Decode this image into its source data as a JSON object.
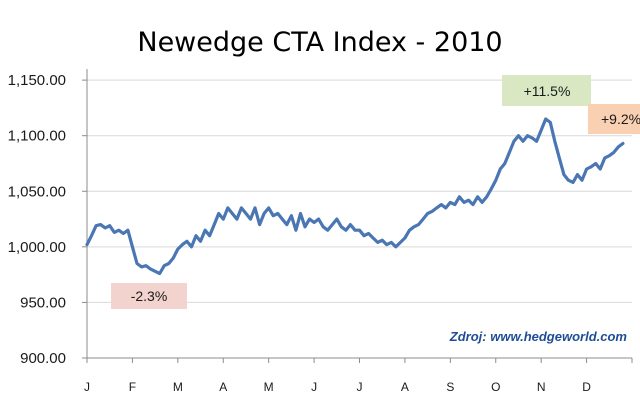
{
  "chart_data": {
    "type": "line",
    "title": "Newedge CTA Index - 2010",
    "source_note": "Zdroj: www.hedgeworld.com",
    "yticks": [
      "1,150.00",
      "1,100.00",
      "1,050.00",
      "1,000.00",
      "950.00",
      "900.00"
    ],
    "ytick_values": [
      1150,
      1100,
      1050,
      1000,
      950,
      900
    ],
    "ylim": [
      900,
      1160
    ],
    "months": [
      "J",
      "F",
      "M",
      "A",
      "M",
      "J",
      "J",
      "A",
      "S",
      "O",
      "N",
      "D"
    ],
    "grid_y": true,
    "line_color": "#4a77b4",
    "x": [
      0,
      0.1,
      0.2,
      0.3,
      0.4,
      0.5,
      0.6,
      0.7,
      0.8,
      0.9,
      1.0,
      1.1,
      1.2,
      1.3,
      1.4,
      1.5,
      1.6,
      1.7,
      1.8,
      1.9,
      2.0,
      2.1,
      2.2,
      2.3,
      2.4,
      2.5,
      2.6,
      2.7,
      2.8,
      2.9,
      3.0,
      3.1,
      3.2,
      3.3,
      3.4,
      3.5,
      3.6,
      3.7,
      3.8,
      3.9,
      4.0,
      4.1,
      4.2,
      4.3,
      4.4,
      4.5,
      4.6,
      4.7,
      4.8,
      4.9,
      5.0,
      5.1,
      5.2,
      5.3,
      5.4,
      5.5,
      5.6,
      5.7,
      5.8,
      5.9,
      6.0,
      6.1,
      6.2,
      6.3,
      6.4,
      6.5,
      6.6,
      6.7,
      6.8,
      6.9,
      7.0,
      7.1,
      7.2,
      7.3,
      7.4,
      7.5,
      7.6,
      7.7,
      7.8,
      7.9,
      8.0,
      8.1,
      8.2,
      8.3,
      8.4,
      8.5,
      8.6,
      8.7,
      8.8,
      8.9,
      9.0,
      9.1,
      9.2,
      9.3,
      9.4,
      9.5,
      9.6,
      9.7,
      9.8,
      9.9,
      10.0,
      10.1,
      10.2,
      10.3,
      10.4,
      10.5,
      10.6,
      10.7,
      10.8,
      10.9,
      11.0,
      11.1,
      11.2,
      11.3,
      11.4,
      11.5,
      11.6,
      11.7,
      11.8
    ],
    "values": [
      1002,
      1010,
      1019,
      1020,
      1017,
      1019,
      1013,
      1015,
      1012,
      1015,
      1000,
      985,
      982,
      983,
      980,
      978,
      976,
      983,
      985,
      990,
      998,
      1002,
      1005,
      1000,
      1010,
      1005,
      1015,
      1010,
      1020,
      1030,
      1025,
      1035,
      1030,
      1025,
      1035,
      1030,
      1025,
      1035,
      1020,
      1030,
      1035,
      1028,
      1030,
      1025,
      1020,
      1028,
      1015,
      1030,
      1018,
      1025,
      1022,
      1025,
      1018,
      1015,
      1020,
      1025,
      1018,
      1015,
      1020,
      1015,
      1015,
      1010,
      1012,
      1008,
      1004,
      1006,
      1002,
      1004,
      1000,
      1004,
      1008,
      1015,
      1018,
      1020,
      1025,
      1030,
      1032,
      1035,
      1038,
      1035,
      1040,
      1038,
      1045,
      1040,
      1042,
      1038,
      1045,
      1040,
      1045,
      1052,
      1060,
      1070,
      1075,
      1085,
      1095,
      1100,
      1095,
      1100,
      1098,
      1095,
      1105,
      1115,
      1112,
      1095,
      1080,
      1065,
      1060,
      1058,
      1065,
      1060,
      1070,
      1072,
      1075,
      1070,
      1080,
      1082,
      1085,
      1090,
      1093
    ],
    "annotations": [
      {
        "label": "-2.3%",
        "color": "#f2d3cd"
      },
      {
        "label": "+11.5%",
        "color": "#d9e8c3"
      },
      {
        "label": "+9.2%",
        "color": "#fad0b2"
      }
    ]
  }
}
